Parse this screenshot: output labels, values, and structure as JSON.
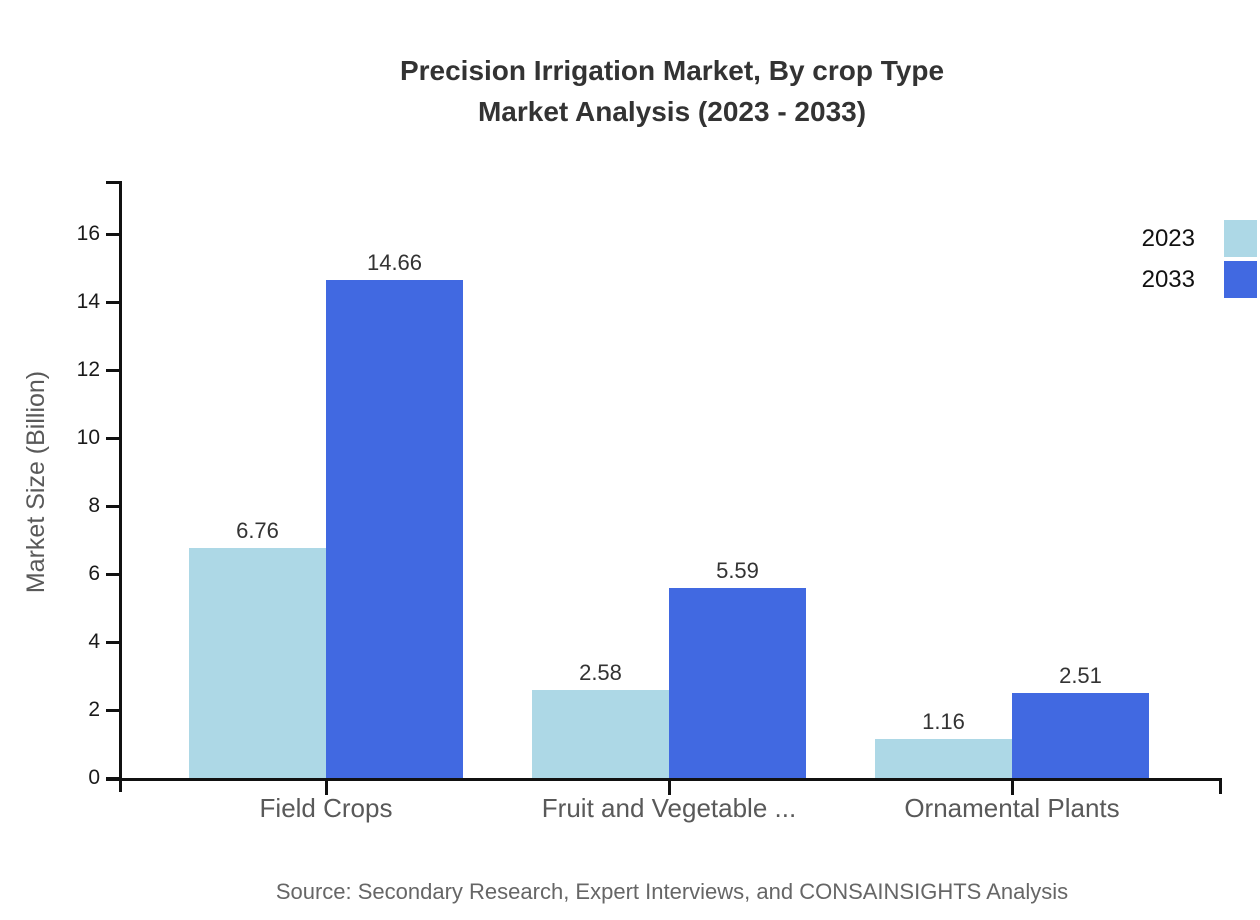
{
  "chart": {
    "title_line1": "Precision Irrigation Market, By crop Type",
    "title_line2": "Market Analysis (2023 - 2033)",
    "source": "Source: Secondary Research, Expert Interviews, and CONSAINSIGHTS Analysis"
  },
  "chart_data": {
    "type": "bar",
    "title": "Precision Irrigation Market, By crop Type Market Analysis (2023 - 2033)",
    "categories": [
      "Field Crops",
      "Fruit and Vegetable ...",
      "Ornamental Plants"
    ],
    "series": [
      {
        "name": "2023",
        "color": "#ADD8E6",
        "values": [
          6.76,
          2.58,
          1.16
        ]
      },
      {
        "name": "2033",
        "color": "#4169E1",
        "values": [
          14.66,
          5.59,
          2.51
        ]
      }
    ],
    "xlabel": "",
    "ylabel": "Market Size (Billion)",
    "ylim": [
      0,
      17.6
    ],
    "yticks": [
      0,
      2,
      4,
      6,
      8,
      10,
      12,
      14,
      16
    ],
    "grid": false,
    "legend_position": "top-right",
    "bar_value_labels": true,
    "value_label_decimals": 2,
    "axis_color": "#111111",
    "background_color": "#ffffff"
  }
}
